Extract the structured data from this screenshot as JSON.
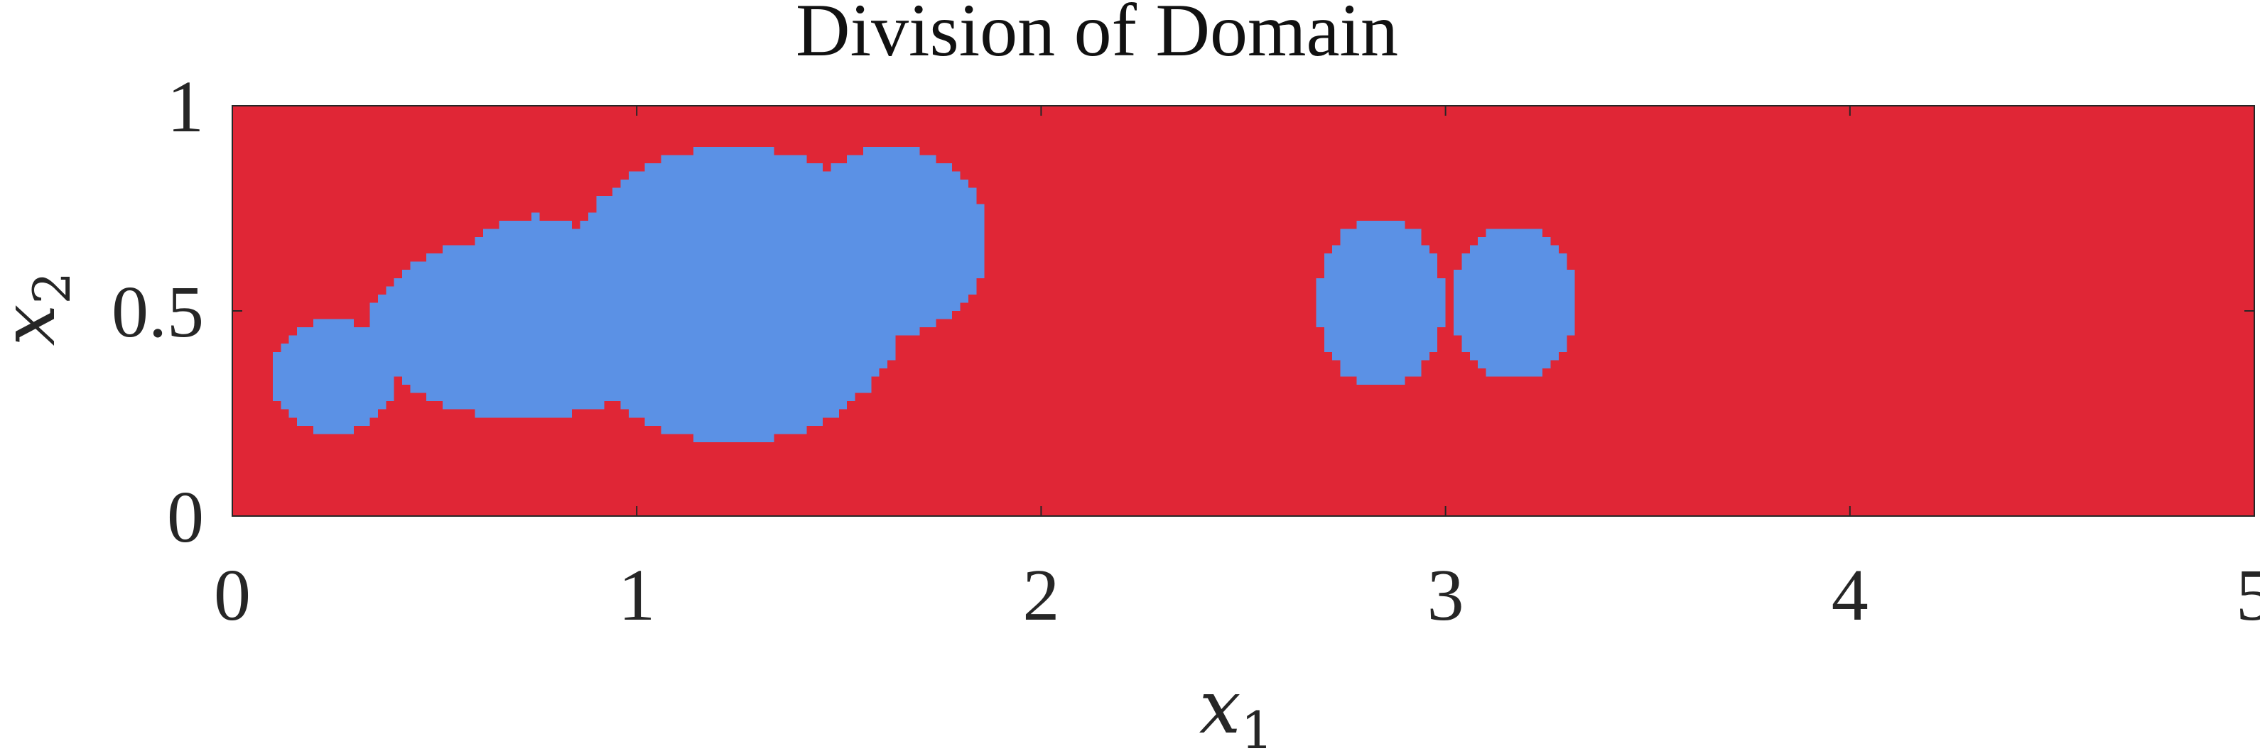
{
  "chart_data": {
    "type": "heatmap",
    "title": "Division of Domain",
    "xlabel": {
      "base": "x",
      "sub": "1"
    },
    "ylabel": {
      "base": "x",
      "sub": "2"
    },
    "xlim": [
      0,
      5
    ],
    "ylim": [
      0,
      1
    ],
    "x_ticks": [
      0,
      1,
      2,
      3,
      4,
      5
    ],
    "y_ticks": [
      0,
      0.5,
      1
    ],
    "x_tick_labels": [
      "0",
      "1",
      "2",
      "3",
      "4",
      "5"
    ],
    "y_tick_labels": [
      "0",
      "0.5",
      "1"
    ],
    "grid": false,
    "legend": "none",
    "colors": {
      "background_region": "#e02636",
      "subdomain_region": "#5b91e5",
      "frame": "#262626"
    },
    "regions": [
      {
        "shape": "ellipse",
        "cx": 0.25,
        "cy": 0.34,
        "rx": 0.155,
        "ry": 0.14
      },
      {
        "shape": "ellipse",
        "cx": 0.72,
        "cy": 0.46,
        "rx": 0.38,
        "ry": 0.22
      },
      {
        "shape": "ellipse",
        "cx": 0.75,
        "cy": 0.55,
        "rx": 0.21,
        "ry": 0.18
      },
      {
        "shape": "ellipse",
        "cx": 1.24,
        "cy": 0.54,
        "rx": 0.43,
        "ry": 0.36
      },
      {
        "shape": "ellipse",
        "cx": 1.63,
        "cy": 0.67,
        "rx": 0.24,
        "ry": 0.23
      },
      {
        "shape": "ellipse",
        "cx": 2.84,
        "cy": 0.52,
        "rx": 0.155,
        "ry": 0.21
      },
      {
        "shape": "ellipse",
        "cx": 3.17,
        "cy": 0.52,
        "rx": 0.155,
        "ry": 0.185
      }
    ]
  }
}
